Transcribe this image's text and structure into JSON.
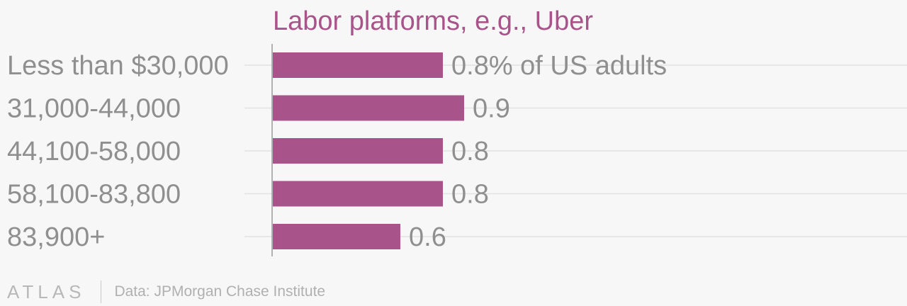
{
  "chart_data": {
    "type": "bar",
    "orientation": "horizontal",
    "title": "Labor platforms, e.g., Uber",
    "categories": [
      "Less than $30,000",
      "31,000-44,000",
      "44,100-58,000",
      "58,100-83,800",
      "83,900+"
    ],
    "values": [
      0.8,
      0.9,
      0.8,
      0.8,
      0.6
    ],
    "value_labels": [
      "0.8% of US adults",
      "0.9",
      "0.8",
      "0.8",
      "0.6"
    ],
    "unit": "% of US adults",
    "xlim": [
      0,
      3.5
    ],
    "grid": true,
    "colors": {
      "bar": "#a8548a",
      "title": "#a8548a",
      "label": "#8f8f8f",
      "grid": "#e2e2e2",
      "axis": "#9a9a9a"
    }
  },
  "footer": {
    "brand": "ATLAS",
    "source": "Data: JPMorgan Chase Institute"
  }
}
